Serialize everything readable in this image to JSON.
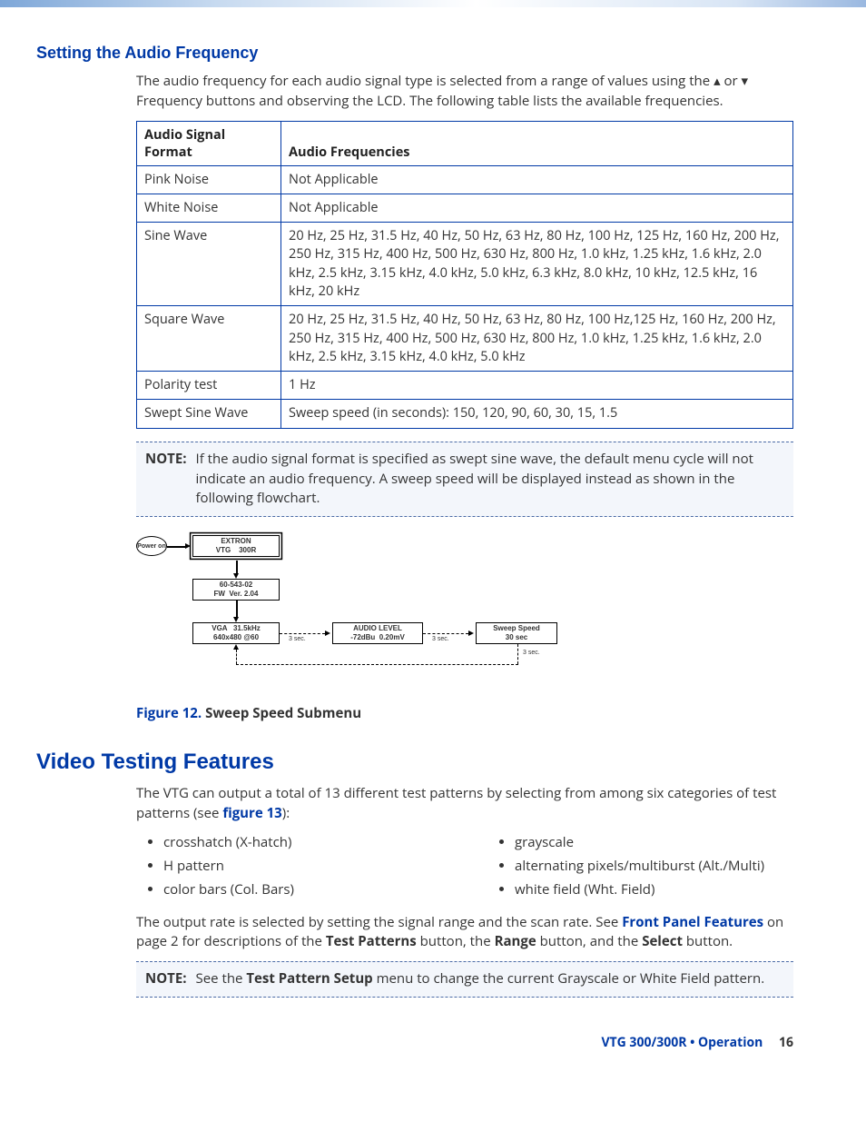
{
  "colors": {
    "brand": "#0039a6",
    "note_bg": "#f3f6fb",
    "text": "#333333"
  },
  "section1": {
    "heading": "Setting the Audio Frequency",
    "intro": "The audio frequency for each audio signal type is selected from a range of values using the ▴ or ▾ Frequency buttons and observing the LCD. The following table lists the available frequencies."
  },
  "freq_table": {
    "headers": [
      "Audio Signal Format",
      "Audio Frequencies"
    ],
    "col_widths": [
      "22%",
      "78%"
    ],
    "rows": [
      [
        "Pink Noise",
        "Not Applicable"
      ],
      [
        "White Noise",
        "Not Applicable"
      ],
      [
        "Sine Wave",
        "20 Hz, 25 Hz, 31.5 Hz, 40 Hz, 50 Hz, 63 Hz, 80 Hz, 100 Hz, 125 Hz, 160 Hz, 200 Hz, 250 Hz, 315 Hz, 400 Hz, 500 Hz, 630 Hz, 800 Hz, 1.0 kHz, 1.25 kHz, 1.6 kHz, 2.0 kHz, 2.5 kHz, 3.15 kHz, 4.0 kHz, 5.0 kHz, 6.3 kHz, 8.0 kHz, 10 kHz, 12.5 kHz, 16 kHz, 20 kHz"
      ],
      [
        "Square Wave",
        "20 Hz, 25 Hz, 31.5 Hz, 40 Hz, 50 Hz, 63 Hz, 80 Hz, 100 Hz,125 Hz, 160 Hz, 200 Hz, 250 Hz, 315 Hz, 400 Hz, 500 Hz, 630 Hz, 800 Hz, 1.0 kHz, 1.25 kHz, 1.6 kHz, 2.0 kHz, 2.5 kHz, 3.15 kHz, 4.0 kHz, 5.0 kHz"
      ],
      [
        "Polarity test",
        "1 Hz"
      ],
      [
        "Swept Sine Wave",
        "Sweep speed (in seconds): 150, 120, 90, 60, 30, 15, 1.5"
      ]
    ]
  },
  "note1": {
    "label": "NOTE:",
    "text": "If the audio signal format is specified as swept sine wave, the default menu cycle will not indicate an audio frequency. A sweep speed will be displayed instead as shown in the following flowchart."
  },
  "flowchart": {
    "type": "flowchart",
    "power_label": "Power on",
    "node1": "EXTRON\nVTG    300R",
    "node2": "60-543-02\nFW  Ver. 2.04",
    "node3": "VGA   31.5kHz\n640x480 @60",
    "node4": "AUDIO LEVEL\n-72dBu  0.20mV",
    "node5": "Sweep Speed\n30 sec",
    "edge_label": "3 sec."
  },
  "figure12": {
    "number": "Figure 12.",
    "title": "Sweep Speed Submenu"
  },
  "section2": {
    "heading": "Video Testing Features",
    "intro_pre": "The VTG can output a total of 13 different test patterns by selecting from among six categories of test patterns (see ",
    "intro_link": "figure 13",
    "intro_post": "):",
    "bullets": [
      "crosshatch (X-hatch)",
      "H pattern",
      "color bars (Col. Bars)",
      "grayscale",
      "alternating pixels/multiburst (Alt./Multi)",
      "white field (Wht. Field)"
    ],
    "para2_pre": "The output rate is selected by setting the signal range and the scan rate. See ",
    "para2_link": "Front Panel Features",
    "para2_mid1": " on page 2 for descriptions of the ",
    "para2_b1": "Test Patterns",
    "para2_mid2": " button, the ",
    "para2_b2": "Range",
    "para2_mid3": " button, and the ",
    "para2_b3": "Select",
    "para2_end": " button."
  },
  "note2": {
    "label": "NOTE:",
    "pre": "See the ",
    "bold": "Test Pattern Setup",
    "post": " menu to change the current Grayscale or White Field pattern."
  },
  "footer": {
    "doc": "VTG 300/300R • Operation",
    "page": "16"
  }
}
